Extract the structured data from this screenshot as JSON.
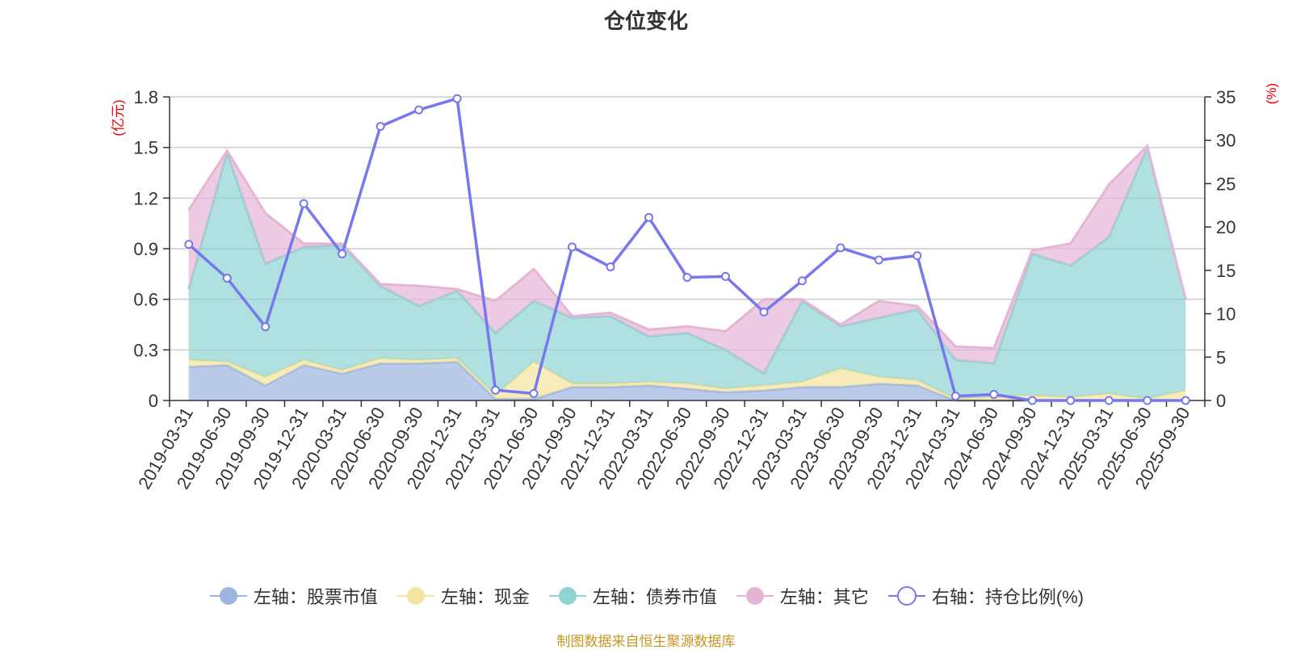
{
  "chart_data": {
    "type": "area",
    "title": "仓位变化",
    "left_axis_label": "(亿元)",
    "right_axis_label": "(%)",
    "left_ylim": [
      0,
      1.8
    ],
    "left_ticks": [
      "0",
      "0.3",
      "0.6",
      "0.9",
      "1.2",
      "1.5",
      "1.8"
    ],
    "right_ylim": [
      0,
      35
    ],
    "right_ticks": [
      "0",
      "5",
      "10",
      "15",
      "20",
      "25",
      "30",
      "35"
    ],
    "categories": [
      "2019-03-31",
      "2019-06-30",
      "2019-09-30",
      "2019-12-31",
      "2020-03-31",
      "2020-06-30",
      "2020-09-30",
      "2020-12-31",
      "2021-03-31",
      "2021-06-30",
      "2021-09-30",
      "2021-12-31",
      "2022-03-31",
      "2022-06-30",
      "2022-09-30",
      "2022-12-31",
      "2023-03-31",
      "2023-06-30",
      "2023-09-30",
      "2023-12-31",
      "2024-03-31",
      "2024-06-30",
      "2024-09-30",
      "2024-12-31",
      "2025-03-31",
      "2025-06-30",
      "2025-09-30"
    ],
    "stacked_series": [
      {
        "name": "左轴：股票市值",
        "color": "#9bb5e0",
        "values": [
          0.2,
          0.21,
          0.09,
          0.21,
          0.16,
          0.22,
          0.22,
          0.23,
          0.01,
          0.01,
          0.08,
          0.08,
          0.09,
          0.07,
          0.05,
          0.06,
          0.08,
          0.08,
          0.1,
          0.09,
          0.0,
          0.0,
          0.0,
          0.0,
          0.0,
          0.0,
          0.0
        ]
      },
      {
        "name": "左轴：现金",
        "color": "#f5e4a0",
        "values": [
          0.04,
          0.02,
          0.05,
          0.03,
          0.02,
          0.03,
          0.02,
          0.02,
          0.02,
          0.22,
          0.02,
          0.02,
          0.02,
          0.03,
          0.02,
          0.03,
          0.03,
          0.11,
          0.04,
          0.03,
          0.01,
          0.02,
          0.03,
          0.02,
          0.04,
          0.01,
          0.06
        ]
      },
      {
        "name": "左轴：债券市值",
        "color": "#8fd3d2",
        "values": [
          0.42,
          1.24,
          0.67,
          0.67,
          0.74,
          0.43,
          0.32,
          0.4,
          0.37,
          0.36,
          0.39,
          0.4,
          0.27,
          0.3,
          0.23,
          0.07,
          0.48,
          0.25,
          0.35,
          0.42,
          0.23,
          0.2,
          0.84,
          0.78,
          0.93,
          1.49,
          0.54
        ]
      },
      {
        "name": "左轴：其它",
        "color": "#e6b5d6",
        "values": [
          0.47,
          0.01,
          0.3,
          0.02,
          0.01,
          0.01,
          0.12,
          0.01,
          0.19,
          0.19,
          0.01,
          0.02,
          0.04,
          0.04,
          0.11,
          0.44,
          0.01,
          0.01,
          0.1,
          0.02,
          0.08,
          0.09,
          0.02,
          0.13,
          0.31,
          0.01,
          0.0
        ]
      }
    ],
    "line_series": {
      "name": "右轴：持仓比例(%)",
      "color": "#7777ee",
      "values": [
        18.0,
        14.1,
        8.5,
        22.7,
        16.9,
        31.6,
        33.5,
        34.8,
        1.2,
        0.8,
        17.7,
        15.4,
        21.1,
        14.2,
        14.3,
        10.2,
        13.8,
        17.6,
        16.2,
        16.7,
        0.5,
        0.7,
        0.0,
        0.0,
        0.0,
        0.0,
        0.0
      ]
    },
    "legend": [
      "左轴：股票市值",
      "左轴：现金",
      "左轴：债券市值",
      "左轴：其它",
      "右轴：持仓比例(%)"
    ]
  },
  "footer": {
    "source": "制图数据来自恒生聚源数据库"
  }
}
